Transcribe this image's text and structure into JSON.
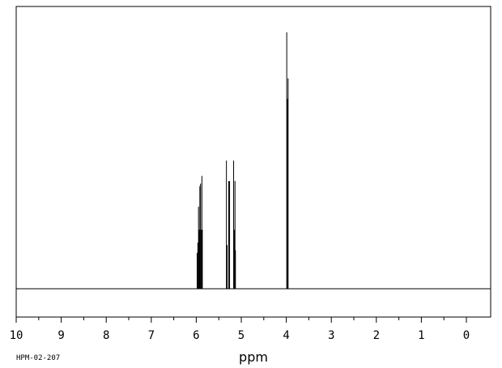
{
  "chart_data": {
    "type": "line",
    "xlabel": "ppm",
    "sample_code": "HPM-02-207",
    "xlim": [
      10,
      0
    ],
    "x_reversed": true,
    "x_ticks": [
      "10",
      "9",
      "8",
      "7",
      "6",
      "5",
      "4",
      "3",
      "2",
      "1",
      "0"
    ],
    "ylim": [
      0,
      1.0
    ],
    "grid": false,
    "peaks": [
      {
        "ppm": 5.98,
        "height": 0.14
      },
      {
        "ppm": 5.965,
        "height": 0.18
      },
      {
        "ppm": 5.95,
        "height": 0.32
      },
      {
        "ppm": 5.935,
        "height": 0.23
      },
      {
        "ppm": 5.92,
        "height": 0.4
      },
      {
        "ppm": 5.905,
        "height": 0.41
      },
      {
        "ppm": 5.89,
        "height": 0.23
      },
      {
        "ppm": 5.875,
        "height": 0.44
      },
      {
        "ppm": 5.865,
        "height": 0.23
      },
      {
        "ppm": 5.33,
        "height": 0.5
      },
      {
        "ppm": 5.315,
        "height": 0.17
      },
      {
        "ppm": 5.28,
        "height": 0.42
      },
      {
        "ppm": 5.26,
        "height": 0.42
      },
      {
        "ppm": 5.17,
        "height": 0.5
      },
      {
        "ppm": 5.155,
        "height": 0.23
      },
      {
        "ppm": 5.14,
        "height": 0.42
      },
      {
        "ppm": 5.13,
        "height": 0.15
      },
      {
        "ppm": 3.99,
        "height": 1.0
      },
      {
        "ppm": 3.975,
        "height": 0.74
      },
      {
        "ppm": 3.96,
        "height": 0.82
      }
    ]
  }
}
